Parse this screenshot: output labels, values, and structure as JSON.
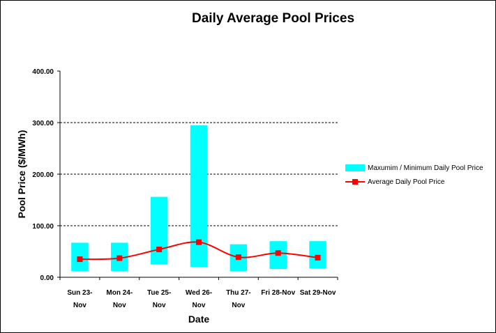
{
  "chart_data": {
    "type": "bar",
    "title": "Daily Average Pool Prices",
    "xlabel": "Date",
    "ylabel": "Pool Price ($/MWh)",
    "ylim": [
      0,
      400
    ],
    "yticks": [
      "0.00",
      "100.00",
      "200.00",
      "300.00",
      "400.00"
    ],
    "grid": true,
    "legend_position": "right",
    "categories": [
      [
        "Sun 23-",
        "Nov"
      ],
      [
        "Mon 24-",
        "Nov"
      ],
      [
        "Tue 25-",
        "Nov"
      ],
      [
        "Wed 26-",
        "Nov"
      ],
      [
        "Thu 27-",
        "Nov"
      ],
      [
        "Fri 28-Nov",
        ""
      ],
      [
        "Sat 29-Nov",
        ""
      ]
    ],
    "series": [
      {
        "name": "Maxumim / Minimum  Daily Pool Price",
        "type": "range",
        "color": "#00ffff",
        "min": [
          12,
          12,
          25,
          20,
          12,
          16,
          17
        ],
        "max": [
          67,
          67,
          156,
          295,
          64,
          70,
          70
        ]
      },
      {
        "name": "Average Daily Pool Price",
        "type": "line",
        "color": "#ff0000",
        "values": [
          35,
          37,
          54,
          68,
          39,
          47,
          38
        ]
      }
    ]
  }
}
